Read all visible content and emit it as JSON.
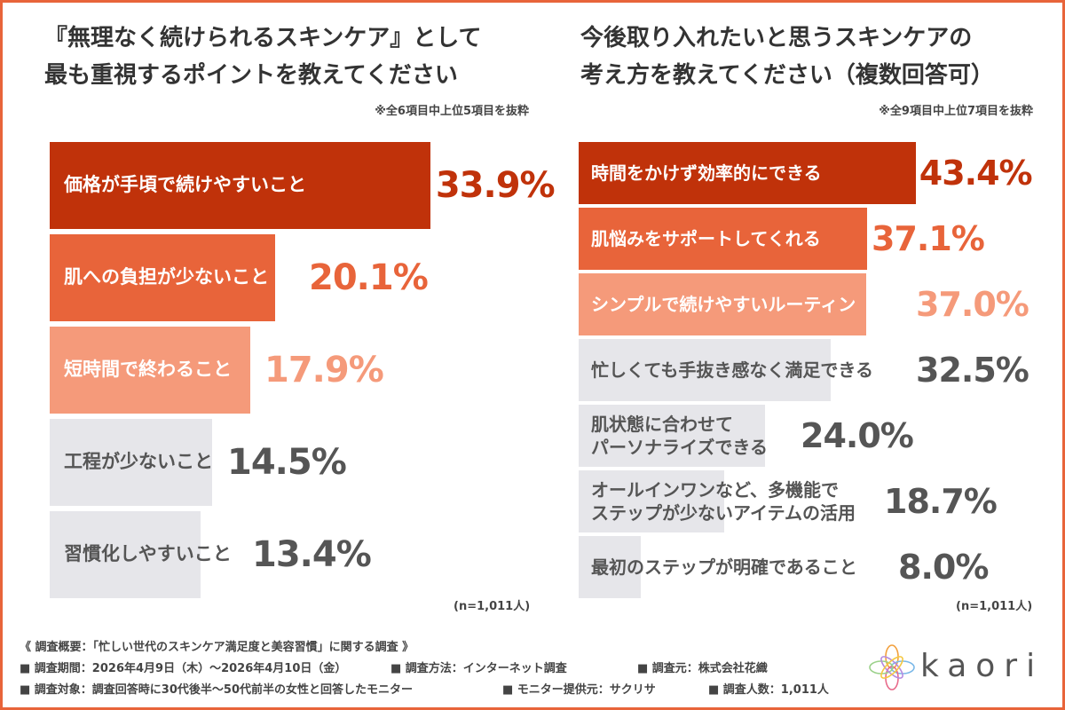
{
  "colors": {
    "frame": "#e8643a",
    "bar_dark": "#c0320a",
    "bar_mid": "#e8643a",
    "bar_light": "#f59a7a",
    "bar_gray": "#e6e6ea",
    "text_gray": "#555555"
  },
  "left": {
    "title_line1": "『無理なく続けられるスキンケア』として",
    "title_line2": "最も重視するポイントを教えてください",
    "note": "※全6項目中上位5項目を抜粋",
    "n_label": "(n=1,011人)"
  },
  "right": {
    "title_line1": "今後取り入れたいと思うスキンケアの",
    "title_line2": "考え方を教えてください（複数回答可）",
    "note": "※全9項目中上位7項目を抜粋",
    "n_label": "(n=1,011人)"
  },
  "chart_data": [
    {
      "type": "bar",
      "orientation": "horizontal",
      "title": "『無理なく続けられるスキンケア』として最も重視するポイントを教えてください",
      "categories": [
        "価格が手頃で続けやすいこと",
        "肌への負担が少ないこと",
        "短時間で終わること",
        "工程が少ないこと",
        "習慣化しやすいこと"
      ],
      "values": [
        33.9,
        20.1,
        17.9,
        14.5,
        13.4
      ],
      "value_labels": [
        "33.9%",
        "20.1%",
        "17.9%",
        "14.5%",
        "13.4%"
      ],
      "xlim": [
        0,
        40
      ],
      "unit": "%",
      "grid": false
    },
    {
      "type": "bar",
      "orientation": "horizontal",
      "title": "今後取り入れたいと思うスキンケアの考え方を教えてください（複数回答可）",
      "categories": [
        "時間をかけず効率的にできる",
        "肌悩みをサポートしてくれる",
        "シンプルで続けやすいルーティン",
        "忙しくても手抜き感なく満足できる",
        "肌状態に合わせてパーソナライズできる",
        "オールインワンなど、多機能でステップが少ないアイテムの活用",
        "最初のステップが明確であること"
      ],
      "label_lines": [
        [
          "時間をかけず効率的にできる"
        ],
        [
          "肌悩みをサポートしてくれる"
        ],
        [
          "シンプルで続けやすいルーティン"
        ],
        [
          "忙しくても手抜き感なく満足できる"
        ],
        [
          "肌状態に合わせて",
          "パーソナライズできる"
        ],
        [
          "オールインワンなど、多機能で",
          "ステップが少ないアイテムの活用"
        ],
        [
          "最初のステップが明確であること"
        ]
      ],
      "values": [
        43.4,
        37.1,
        37.0,
        32.5,
        24.0,
        18.7,
        8.0
      ],
      "value_labels": [
        "43.4%",
        "37.1%",
        "37.0%",
        "32.5%",
        "24.0%",
        "18.7%",
        "8.0%"
      ],
      "xlim": [
        0,
        45
      ],
      "unit": "%",
      "grid": false
    }
  ],
  "footer": {
    "summary": "《 調査概要：「忙しい世代のスキンケア満足度と美容習慣」に関する調査 》",
    "period": "■ 調査期間：2026年4月9日（木）〜2026年4月10日（金）",
    "method": "■ 調査方法：インターネット調査",
    "source": "■ 調査元：株式会社花織",
    "target": "■ 調査対象：調査回答時に30代後半〜50代前半の女性と回答したモニター",
    "provider": "■ モニター提供元：サクリサ",
    "count": "■ 調査人数：1,011人"
  },
  "logo": {
    "text": "kaori",
    "icon": "flower-logo-icon"
  }
}
